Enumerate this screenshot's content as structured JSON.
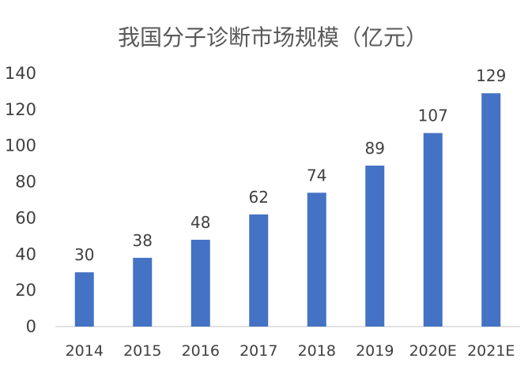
{
  "chart_data": {
    "type": "bar",
    "title": "我国分子诊断市场规模（亿元）",
    "categories": [
      "2014",
      "2015",
      "2016",
      "2017",
      "2018",
      "2019",
      "2020E",
      "2021E"
    ],
    "values": [
      30,
      38,
      48,
      62,
      74,
      89,
      107,
      129
    ],
    "data_labels": [
      "30",
      "38",
      "48",
      "62",
      "74",
      "89",
      "107",
      "129"
    ],
    "y_ticks": [
      "0",
      "20",
      "40",
      "60",
      "80",
      "100",
      "120",
      "140"
    ],
    "ylim": [
      0,
      140
    ],
    "xlabel": "",
    "ylabel": "",
    "grid": false,
    "legend": "none",
    "bar_color": "#4472C4",
    "axis_color": "#D9D9D9",
    "text_color": "#404040"
  }
}
